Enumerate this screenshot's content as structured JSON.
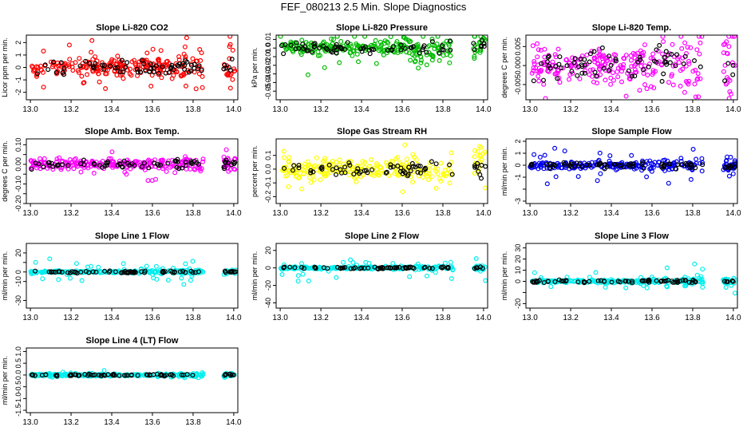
{
  "figure": {
    "title": "FEF_080213  2.5 Min. Slope Diagnostics",
    "x_ticks": [
      "13.0",
      "13.2",
      "13.4",
      "13.6",
      "13.8",
      "14.0"
    ],
    "overlay_color": "#000000"
  },
  "chart_data": [
    {
      "type": "scatter",
      "title": "Slope Li-820 CO2",
      "ylabel": "Licor ppm per min.",
      "color": "#ff0000",
      "xlim": [
        12.98,
        14.02
      ],
      "ylim": [
        -2.6,
        2.6
      ],
      "yticks": [
        -2,
        -1,
        0,
        1,
        2
      ],
      "ytick_labels": [
        "-2",
        "-1",
        "0",
        "1",
        "2"
      ],
      "spread": 0.6,
      "outlier_scale": 2.2,
      "seed": 11,
      "note": "main series plus black overlay series, x range ~13.0-13.85 and 13.95-14.0"
    },
    {
      "type": "scatter",
      "title": "Slope Li-820 Pressure",
      "ylabel": "kPa per min.",
      "color": "#00bb00",
      "xlim": [
        12.98,
        14.02
      ],
      "ylim": [
        -0.06,
        0.015
      ],
      "yticks": [
        -0.05,
        -0.04,
        -0.03,
        -0.02,
        -0.01,
        0.0,
        0.01
      ],
      "ytick_labels": [
        "-0.05",
        "-0.04",
        "-0.03",
        "-0.02",
        "-0.01",
        "0.0",
        "0.01"
      ],
      "spread": 0.007,
      "outlier_scale": 0.03,
      "seed": 23
    },
    {
      "type": "scatter",
      "title": "Slope Li-820 Temp.",
      "ylabel": "degrees C per min.",
      "color": "#ff00ff",
      "xlim": [
        12.98,
        14.02
      ],
      "ylim": [
        -0.009,
        0.008
      ],
      "yticks": [
        -0.005,
        0.0,
        0.005
      ],
      "ytick_labels": [
        "-0.005",
        "0.000",
        "0.005"
      ],
      "spread": 0.004,
      "outlier_scale": 0.006,
      "seed": 37
    },
    {
      "type": "scatter",
      "title": "Slope Amb. Box Temp.",
      "ylabel": "degrees C per min.",
      "color": "#ff00ff",
      "xlim": [
        12.98,
        14.02
      ],
      "ylim": [
        -0.2,
        0.13
      ],
      "yticks": [
        -0.2,
        -0.15,
        -0.1,
        -0.05,
        0.0,
        0.05,
        0.1
      ],
      "ytick_labels": [
        "-0.20",
        "",
        "-0.10",
        "",
        "0.00",
        "",
        "0.10"
      ],
      "spread": 0.02,
      "outlier_scale": 0.06,
      "seed": 41
    },
    {
      "type": "scatter",
      "title": "Slope Gas Stream RH",
      "ylabel": "percent per min.",
      "color": "#ffff00",
      "xlim": [
        12.98,
        14.02
      ],
      "ylim": [
        -0.25,
        0.22
      ],
      "yticks": [
        -0.2,
        -0.1,
        0.0,
        0.1
      ],
      "ytick_labels": [
        "-0.2",
        "-0.1",
        "0.0",
        "0.1"
      ],
      "spread": 0.06,
      "outlier_scale": 0.14,
      "seed": 53
    },
    {
      "type": "scatter",
      "title": "Slope Sample Flow",
      "ylabel": "ml/min per min.",
      "color": "#0000ee",
      "xlim": [
        12.98,
        14.02
      ],
      "ylim": [
        -3.2,
        2.2
      ],
      "yticks": [
        -3,
        -2,
        -1,
        0,
        1,
        2
      ],
      "ytick_labels": [
        "-3",
        "",
        "-1",
        "0",
        "1",
        "2"
      ],
      "spread": 0.25,
      "outlier_scale": 1.6,
      "seed": 67
    },
    {
      "type": "scatter",
      "title": "Slope Line 1 Flow",
      "ylabel": "ml/min per min.",
      "color": "#00eeee",
      "xlim": [
        12.98,
        14.02
      ],
      "ylim": [
        -38,
        30
      ],
      "yticks": [
        -30,
        -10,
        0,
        10,
        20
      ],
      "ytick_labels": [
        "-30",
        "-10",
        "0",
        "",
        "20"
      ],
      "spread": 1.0,
      "outlier_scale": 12,
      "seed": 71
    },
    {
      "type": "scatter",
      "title": "Slope Line 2 Flow",
      "ylabel": "ml/min per min.",
      "color": "#00eeee",
      "xlim": [
        12.98,
        14.02
      ],
      "ylim": [
        -46,
        28
      ],
      "yticks": [
        -40,
        -20,
        0,
        20
      ],
      "ytick_labels": [
        "-40",
        "-20",
        "0",
        "20"
      ],
      "spread": 1.2,
      "outlier_scale": 11,
      "seed": 83
    },
    {
      "type": "scatter",
      "title": "Slope Line 3 Flow",
      "ylabel": "ml/min per min.",
      "color": "#00eeee",
      "xlim": [
        12.98,
        14.02
      ],
      "ylim": [
        -24,
        34
      ],
      "yticks": [
        -20,
        -10,
        0,
        10,
        20,
        30
      ],
      "ytick_labels": [
        "-20",
        "",
        "0",
        "10",
        "20",
        "30"
      ],
      "spread": 1.2,
      "outlier_scale": 9,
      "seed": 97
    },
    {
      "type": "scatter",
      "title": "Slope Line 4 (LT) Flow",
      "ylabel": "ml/min per min.",
      "color": "#00eeee",
      "xlim": [
        12.98,
        14.02
      ],
      "ylim": [
        -1.6,
        1.15
      ],
      "yticks": [
        -1.5,
        -1.0,
        -0.5,
        0.0,
        0.5,
        1.0
      ],
      "ytick_labels": [
        "-1.5",
        "-1.0",
        "-0.5",
        "0.0",
        "0.5",
        "1.0"
      ],
      "spread": 0.04,
      "outlier_scale": 0.12,
      "seed": 101
    }
  ]
}
